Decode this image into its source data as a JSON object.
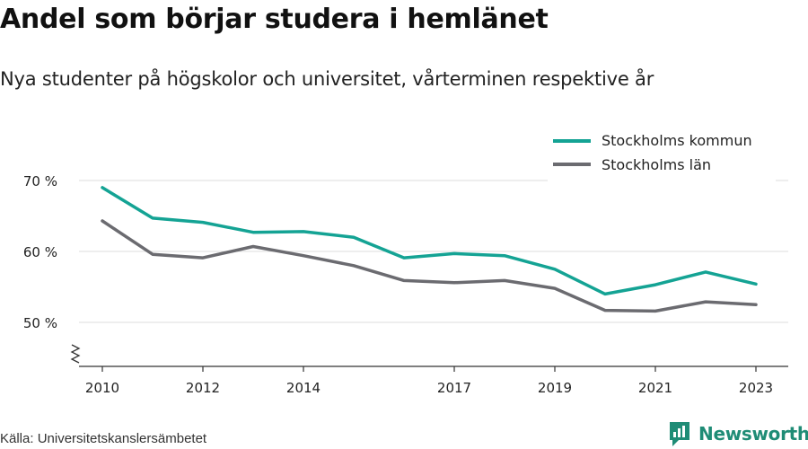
{
  "title": "Andel som börjar studera i hemlänet",
  "subtitle": "Nya studenter på högskolor och universitet, vårterminen respektive år",
  "source": "Källa: Universitetskanslersämbetet",
  "brand": {
    "name": "Newsworthy",
    "icon": "newsworthy-logo-icon",
    "color": "#1f8c76"
  },
  "chart_data": {
    "type": "line",
    "x": [
      2010,
      2011,
      2012,
      2013,
      2014,
      2015,
      2016,
      2017,
      2018,
      2019,
      2020,
      2021,
      2022,
      2023
    ],
    "x_ticks": [
      "2010",
      "2012",
      "2014",
      "2017",
      "2019",
      "2021",
      "2023"
    ],
    "y_ticks": [
      {
        "value": 50,
        "label": "50 %"
      },
      {
        "value": 60,
        "label": "60 %"
      },
      {
        "value": 70,
        "label": "70 %"
      }
    ],
    "ylim": [
      44,
      71.5
    ],
    "y_axis_break": true,
    "grid": true,
    "legend_position": "top-right",
    "series": [
      {
        "name": "Stockholms kommun",
        "color": "#14a394",
        "values": [
          69.0,
          64.7,
          64.1,
          62.7,
          62.8,
          62.0,
          59.1,
          59.7,
          59.4,
          57.5,
          54.0,
          55.3,
          57.1,
          55.4
        ]
      },
      {
        "name": "Stockholms län",
        "color": "#6b6b70",
        "values": [
          64.3,
          59.6,
          59.1,
          60.7,
          59.4,
          58.0,
          55.9,
          55.6,
          55.9,
          54.8,
          51.7,
          51.6,
          52.9,
          52.5
        ]
      }
    ]
  }
}
